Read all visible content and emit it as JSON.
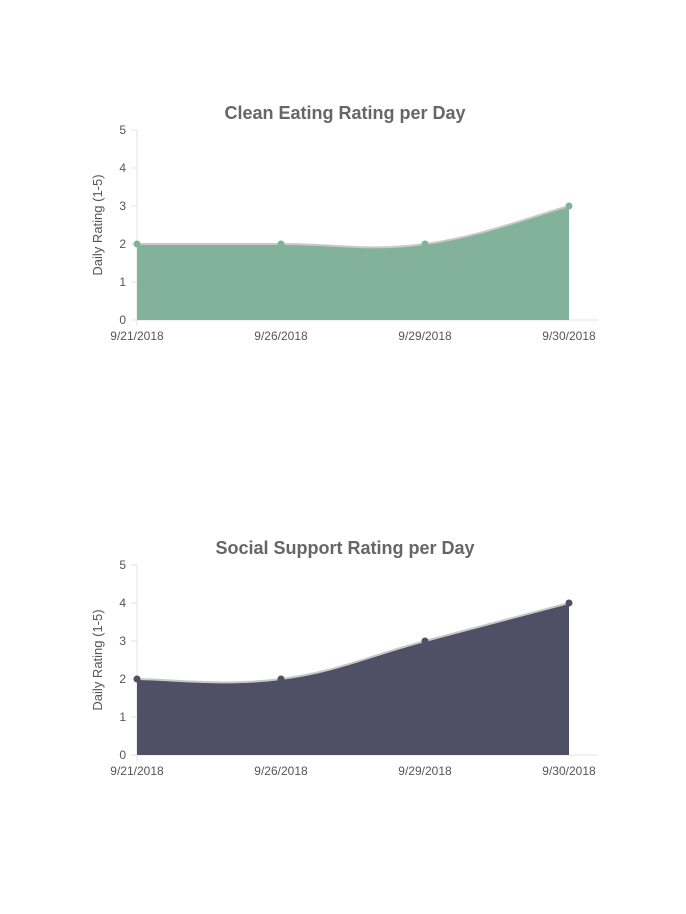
{
  "chart_data": [
    {
      "type": "area",
      "title": "Clean Eating Rating per Day",
      "xlabel": "",
      "ylabel": "Daily Rating (1-5)",
      "categories": [
        "9/21/2018",
        "9/26/2018",
        "9/29/2018",
        "9/30/2018"
      ],
      "values": [
        2,
        2,
        2,
        3
      ],
      "ylim": [
        0,
        5
      ],
      "yticks": [
        "0",
        "1",
        "2",
        "3",
        "4",
        "5"
      ],
      "color": "#82b29a",
      "grid": false
    },
    {
      "type": "area",
      "title": "Social Support Rating per Day",
      "xlabel": "",
      "ylabel": "Daily Rating (1-5)",
      "categories": [
        "9/21/2018",
        "9/26/2018",
        "9/29/2018",
        "9/30/2018"
      ],
      "values": [
        2,
        2,
        3,
        4
      ],
      "ylim": [
        0,
        5
      ],
      "yticks": [
        "0",
        "1",
        "2",
        "3",
        "4",
        "5"
      ],
      "color": "#4f5065",
      "grid": false
    }
  ]
}
